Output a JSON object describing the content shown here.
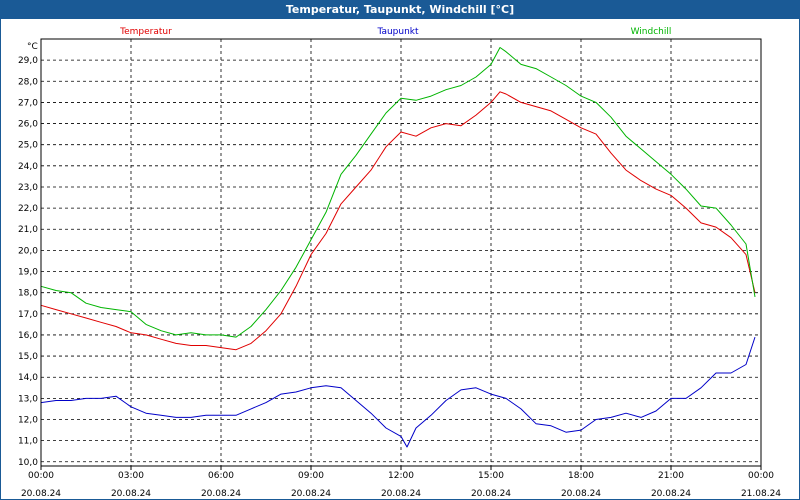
{
  "window": {
    "title": "Temperatur, Taupunkt, Windchill [°C]"
  },
  "chart_data": {
    "type": "line",
    "title": "Temperatur, Taupunkt, Windchill [°C]",
    "ylabel": "°C",
    "xlabel": "",
    "ylim": [
      9.8,
      30.0
    ],
    "xlim": [
      0,
      24
    ],
    "grid": true,
    "legend_placement": "top",
    "y_ticks": [
      "10,0",
      "11,0",
      "12,0",
      "13,0",
      "14,0",
      "15,0",
      "16,0",
      "17,0",
      "18,0",
      "19,0",
      "20,0",
      "21,0",
      "22,0",
      "23,0",
      "24,0",
      "25,0",
      "26,0",
      "27,0",
      "28,0",
      "29,0"
    ],
    "x_ticks": [
      {
        "time": "00:00",
        "date": "20.08.24"
      },
      {
        "time": "03:00",
        "date": "20.08.24"
      },
      {
        "time": "06:00",
        "date": "20.08.24"
      },
      {
        "time": "09:00",
        "date": "20.08.24"
      },
      {
        "time": "12:00",
        "date": "20.08.24"
      },
      {
        "time": "15:00",
        "date": "20.08.24"
      },
      {
        "time": "18:00",
        "date": "20.08.24"
      },
      {
        "time": "21:00",
        "date": "20.08.24"
      },
      {
        "time": "00:00",
        "date": "21.08.24"
      }
    ],
    "series": [
      {
        "name": "Temperatur",
        "color": "#e00000",
        "x": [
          0,
          0.5,
          1,
          1.5,
          2,
          2.5,
          3,
          3.5,
          4,
          4.5,
          5,
          5.5,
          6,
          6.5,
          7,
          7.5,
          8,
          8.5,
          9,
          9.5,
          10,
          10.5,
          11,
          11.5,
          12,
          12.5,
          13,
          13.5,
          14,
          14.5,
          15,
          15.3,
          15.5,
          16,
          16.5,
          17,
          17.5,
          18,
          18.5,
          19,
          19.5,
          20,
          20.5,
          21,
          21.5,
          22,
          22.5,
          23,
          23.5,
          23.8
        ],
        "values": [
          17.4,
          17.2,
          17.0,
          16.8,
          16.6,
          16.4,
          16.1,
          16.0,
          15.8,
          15.6,
          15.5,
          15.5,
          15.4,
          15.3,
          15.6,
          16.2,
          17.0,
          18.3,
          19.8,
          20.8,
          22.2,
          23.0,
          23.8,
          24.9,
          25.6,
          25.4,
          25.8,
          26.0,
          25.9,
          26.4,
          27.0,
          27.5,
          27.4,
          27.0,
          26.8,
          26.6,
          26.2,
          25.8,
          25.5,
          24.6,
          23.8,
          23.3,
          22.9,
          22.6,
          22.0,
          21.3,
          21.1,
          20.6,
          19.8,
          18.0
        ]
      },
      {
        "name": "Taupunkt",
        "color": "#0000c8",
        "x": [
          0,
          0.5,
          1,
          1.5,
          2,
          2.5,
          3,
          3.5,
          4,
          4.5,
          5,
          5.5,
          6,
          6.5,
          7,
          7.5,
          8,
          8.5,
          9,
          9.5,
          10,
          10.5,
          11,
          11.5,
          12,
          12.2,
          12.5,
          13,
          13.5,
          14,
          14.5,
          15,
          15.5,
          16,
          16.5,
          17,
          17.5,
          18,
          18.5,
          19,
          19.5,
          20,
          20.5,
          21,
          21.5,
          22,
          22.5,
          23,
          23.5,
          23.8
        ],
        "values": [
          12.8,
          12.9,
          12.9,
          13.0,
          13.0,
          13.1,
          12.6,
          12.3,
          12.2,
          12.1,
          12.1,
          12.2,
          12.2,
          12.2,
          12.5,
          12.8,
          13.2,
          13.3,
          13.5,
          13.6,
          13.5,
          12.9,
          12.3,
          11.6,
          11.2,
          10.7,
          11.6,
          12.2,
          12.9,
          13.4,
          13.5,
          13.2,
          13.0,
          12.5,
          11.8,
          11.7,
          11.4,
          11.5,
          12.0,
          12.1,
          12.3,
          12.1,
          12.4,
          13.0,
          13.0,
          13.5,
          14.2,
          14.2,
          14.6,
          15.9
        ]
      },
      {
        "name": "Windchill",
        "color": "#00b400",
        "x": [
          0,
          0.5,
          1,
          1.5,
          2,
          2.5,
          3,
          3.5,
          4,
          4.5,
          5,
          5.5,
          6,
          6.5,
          7,
          7.5,
          8,
          8.5,
          9,
          9.5,
          10,
          10.5,
          11,
          11.5,
          12,
          12.5,
          13,
          13.5,
          14,
          14.5,
          15,
          15.3,
          15.5,
          16,
          16.5,
          17,
          17.5,
          18,
          18.5,
          19,
          19.5,
          20,
          20.5,
          21,
          21.5,
          22,
          22.5,
          23,
          23.5,
          23.8
        ],
        "values": [
          18.3,
          18.1,
          18.0,
          17.5,
          17.3,
          17.2,
          17.1,
          16.5,
          16.2,
          16.0,
          16.1,
          16.0,
          16.0,
          15.9,
          16.4,
          17.2,
          18.1,
          19.2,
          20.5,
          21.8,
          23.6,
          24.5,
          25.5,
          26.5,
          27.2,
          27.1,
          27.3,
          27.6,
          27.8,
          28.2,
          28.8,
          29.6,
          29.4,
          28.8,
          28.6,
          28.2,
          27.8,
          27.3,
          27.0,
          26.3,
          25.4,
          24.8,
          24.2,
          23.6,
          22.9,
          22.1,
          22.0,
          21.2,
          20.3,
          17.8
        ]
      }
    ]
  }
}
